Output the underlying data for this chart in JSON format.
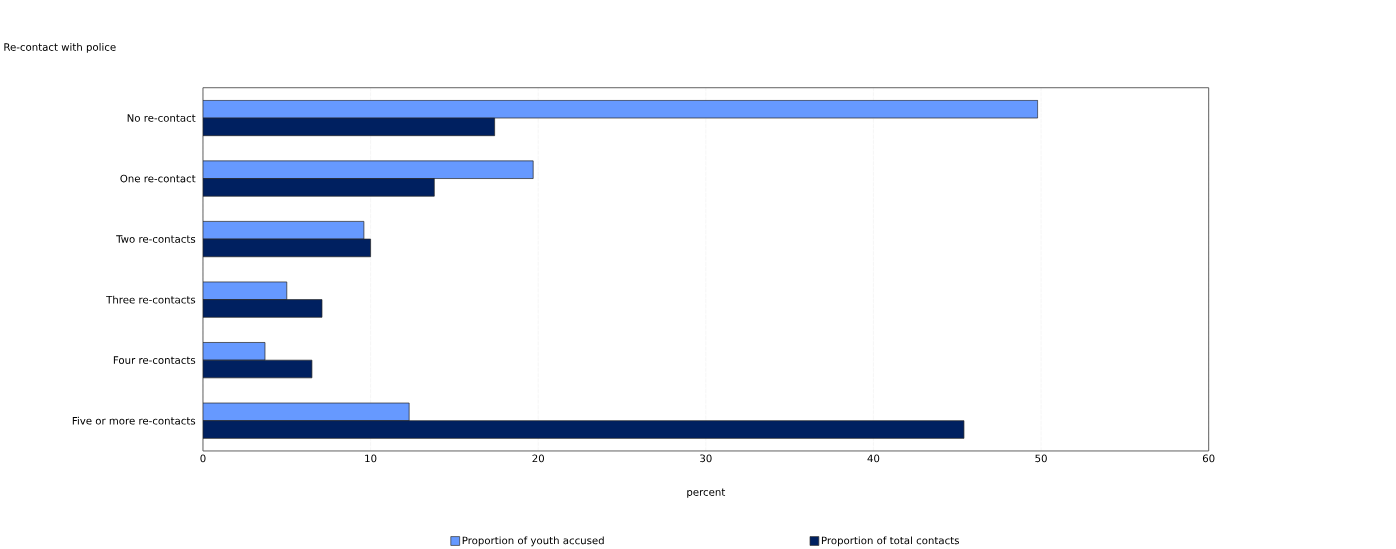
{
  "chart_data": {
    "type": "bar",
    "orientation": "horizontal",
    "title": "Re-contact with police",
    "xlabel": "percent",
    "categories": [
      "No re-contact",
      "One re-contact",
      "Two re-contacts",
      "Three re-contacts",
      "Four re-contacts",
      "Five or more re-contacts"
    ],
    "series": [
      {
        "name": "Proportion of youth accused",
        "color": "#6699ff",
        "values": [
          49.8,
          19.7,
          9.6,
          5.0,
          3.7,
          12.3
        ]
      },
      {
        "name": "Proportion of total contacts",
        "color": "#002060",
        "values": [
          17.4,
          13.8,
          10.0,
          7.1,
          6.5,
          45.4
        ]
      }
    ],
    "xlim": [
      0,
      60
    ],
    "xticks": [
      0,
      10,
      20,
      30,
      40,
      50,
      60
    ],
    "grid": "x",
    "legend": "bottom"
  }
}
